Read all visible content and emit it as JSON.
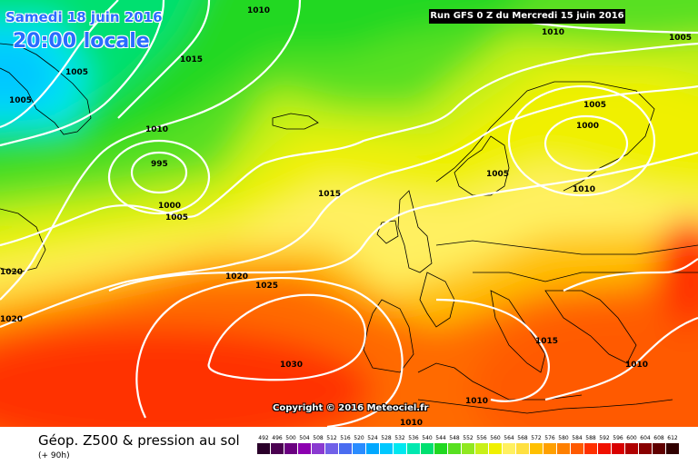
{
  "header": {
    "date": "Samedi 18 juin 2016",
    "time": "20:00 locale",
    "run": "Run GFS 0 Z du Mercredi 15 juin 2016"
  },
  "copyright": "Copyright © 2016 Meteociel.fr",
  "footer": {
    "parameter": "Géop. Z500 & pression au sol",
    "offset": "(+ 90h)"
  },
  "scale": [
    {
      "label": "492",
      "color": "#2a002a"
    },
    {
      "label": "496",
      "color": "#4a0050"
    },
    {
      "label": "500",
      "color": "#6a0080"
    },
    {
      "label": "504",
      "color": "#8c00b0"
    },
    {
      "label": "508",
      "color": "#8a3ad0"
    },
    {
      "label": "512",
      "color": "#7060e8"
    },
    {
      "label": "516",
      "color": "#4a6cf0"
    },
    {
      "label": "520",
      "color": "#2a8cff"
    },
    {
      "label": "524",
      "color": "#00a8ff"
    },
    {
      "label": "528",
      "color": "#00c8ff"
    },
    {
      "label": "532",
      "color": "#00e8f0"
    },
    {
      "label": "536",
      "color": "#00e8b0"
    },
    {
      "label": "540",
      "color": "#00e070"
    },
    {
      "label": "544",
      "color": "#20d820"
    },
    {
      "label": "548",
      "color": "#58e020"
    },
    {
      "label": "552",
      "color": "#90e820"
    },
    {
      "label": "556",
      "color": "#c8f018"
    },
    {
      "label": "560",
      "color": "#f0f000"
    },
    {
      "label": "564",
      "color": "#fff060"
    },
    {
      "label": "568",
      "color": "#ffe040"
    },
    {
      "label": "572",
      "color": "#ffc000"
    },
    {
      "label": "576",
      "color": "#ffa000"
    },
    {
      "label": "580",
      "color": "#ff8000"
    },
    {
      "label": "584",
      "color": "#ff5a00"
    },
    {
      "label": "588",
      "color": "#ff3000"
    },
    {
      "label": "592",
      "color": "#f01000"
    },
    {
      "label": "596",
      "color": "#d80000"
    },
    {
      "label": "600",
      "color": "#b00000"
    },
    {
      "label": "604",
      "color": "#880000"
    },
    {
      "label": "608",
      "color": "#600000"
    },
    {
      "label": "612",
      "color": "#300000"
    }
  ],
  "isobar_labels": [
    {
      "text": "1010"
    },
    {
      "text": "1010"
    },
    {
      "text": "1005"
    },
    {
      "text": "1015"
    },
    {
      "text": "1005"
    },
    {
      "text": "1005"
    },
    {
      "text": "1010"
    },
    {
      "text": "995"
    },
    {
      "text": "1000"
    },
    {
      "text": "1005"
    },
    {
      "text": "1015"
    },
    {
      "text": "1005"
    },
    {
      "text": "1000"
    },
    {
      "text": "1005"
    },
    {
      "text": "1010"
    },
    {
      "text": "1020"
    },
    {
      "text": "1020"
    },
    {
      "text": "1020"
    },
    {
      "text": "1025"
    },
    {
      "text": "1030"
    },
    {
      "text": "1015"
    },
    {
      "text": "1010"
    },
    {
      "text": "1010"
    },
    {
      "text": "1010"
    }
  ]
}
